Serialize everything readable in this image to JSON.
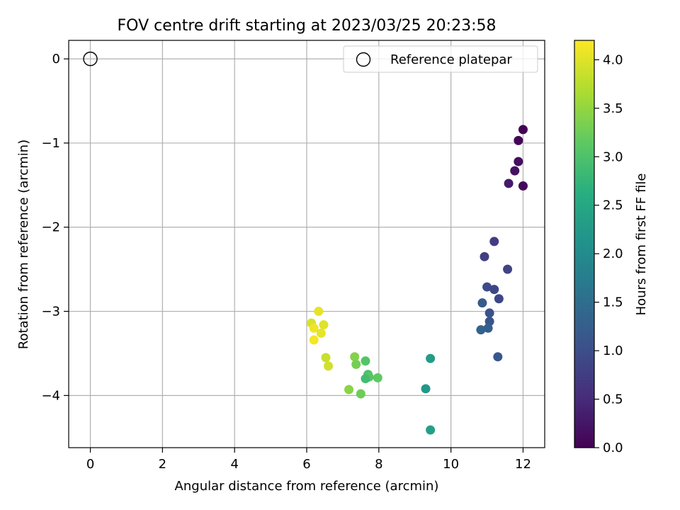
{
  "chart_data": {
    "type": "scatter",
    "title": "FOV centre drift starting at 2023/03/25 20:23:58",
    "xlabel": "Angular distance from reference (arcmin)",
    "ylabel": "Rotation from reference (arcmin)",
    "xlim": [
      -0.6,
      12.6
    ],
    "ylim": [
      -4.62,
      0.22
    ],
    "xticks": [
      0,
      2,
      4,
      6,
      8,
      10,
      12
    ],
    "xtick_labels": [
      "0",
      "2",
      "4",
      "6",
      "8",
      "10",
      "12"
    ],
    "yticks": [
      0,
      -1,
      -2,
      -3,
      -4
    ],
    "ytick_labels": [
      "0",
      "−1",
      "−2",
      "−3",
      "−4"
    ],
    "grid": true,
    "legend": {
      "placement": "top-right",
      "entries": [
        {
          "label": "Reference platepar",
          "marker": "open-circle"
        }
      ]
    },
    "reference_point": {
      "x": 0,
      "y": 0
    },
    "colorbar": {
      "label": "Hours from first FF file",
      "colormap": "viridis",
      "range": [
        0.0,
        4.2
      ],
      "ticks": [
        0.0,
        0.5,
        1.0,
        1.5,
        2.0,
        2.5,
        3.0,
        3.5,
        4.0
      ],
      "tick_labels": [
        "0.0",
        "0.5",
        "1.0",
        "1.5",
        "2.0",
        "2.5",
        "3.0",
        "3.5",
        "4.0"
      ]
    },
    "points": [
      {
        "x": 12.0,
        "y": -0.84,
        "c": 0.0
      },
      {
        "x": 11.87,
        "y": -0.97,
        "c": 0.05
      },
      {
        "x": 11.87,
        "y": -1.22,
        "c": 0.15
      },
      {
        "x": 11.77,
        "y": -1.33,
        "c": 0.2
      },
      {
        "x": 11.6,
        "y": -1.48,
        "c": 0.3
      },
      {
        "x": 12.0,
        "y": -1.51,
        "c": 0.1
      },
      {
        "x": 11.2,
        "y": -2.17,
        "c": 0.75
      },
      {
        "x": 10.93,
        "y": -2.35,
        "c": 0.8
      },
      {
        "x": 11.57,
        "y": -2.5,
        "c": 0.85
      },
      {
        "x": 11.0,
        "y": -2.71,
        "c": 0.95
      },
      {
        "x": 11.2,
        "y": -2.74,
        "c": 0.9
      },
      {
        "x": 11.33,
        "y": -2.85,
        "c": 0.9
      },
      {
        "x": 10.87,
        "y": -2.9,
        "c": 1.2
      },
      {
        "x": 11.07,
        "y": -3.02,
        "c": 1.05
      },
      {
        "x": 11.07,
        "y": -3.12,
        "c": 1.1
      },
      {
        "x": 10.83,
        "y": -3.22,
        "c": 1.3
      },
      {
        "x": 11.03,
        "y": -3.2,
        "c": 1.25
      },
      {
        "x": 11.3,
        "y": -3.54,
        "c": 1.15
      },
      {
        "x": 9.43,
        "y": -3.56,
        "c": 2.3
      },
      {
        "x": 9.3,
        "y": -3.92,
        "c": 2.2
      },
      {
        "x": 9.43,
        "y": -4.41,
        "c": 2.35
      },
      {
        "x": 7.63,
        "y": -3.59,
        "c": 3.05
      },
      {
        "x": 7.33,
        "y": -3.54,
        "c": 3.4
      },
      {
        "x": 7.37,
        "y": -3.63,
        "c": 3.3
      },
      {
        "x": 7.7,
        "y": -3.75,
        "c": 3.0
      },
      {
        "x": 7.73,
        "y": -3.78,
        "c": 3.1
      },
      {
        "x": 7.63,
        "y": -3.8,
        "c": 2.9
      },
      {
        "x": 7.97,
        "y": -3.79,
        "c": 3.15
      },
      {
        "x": 7.17,
        "y": -3.93,
        "c": 3.45
      },
      {
        "x": 7.5,
        "y": -3.98,
        "c": 3.25
      },
      {
        "x": 6.33,
        "y": -3.0,
        "c": 4.05
      },
      {
        "x": 6.13,
        "y": -3.14,
        "c": 3.95
      },
      {
        "x": 6.47,
        "y": -3.16,
        "c": 4.0
      },
      {
        "x": 6.2,
        "y": -3.2,
        "c": 4.1
      },
      {
        "x": 6.4,
        "y": -3.26,
        "c": 4.05
      },
      {
        "x": 6.2,
        "y": -3.34,
        "c": 4.15
      },
      {
        "x": 6.53,
        "y": -3.55,
        "c": 3.85
      },
      {
        "x": 6.6,
        "y": -3.65,
        "c": 3.9
      }
    ]
  }
}
